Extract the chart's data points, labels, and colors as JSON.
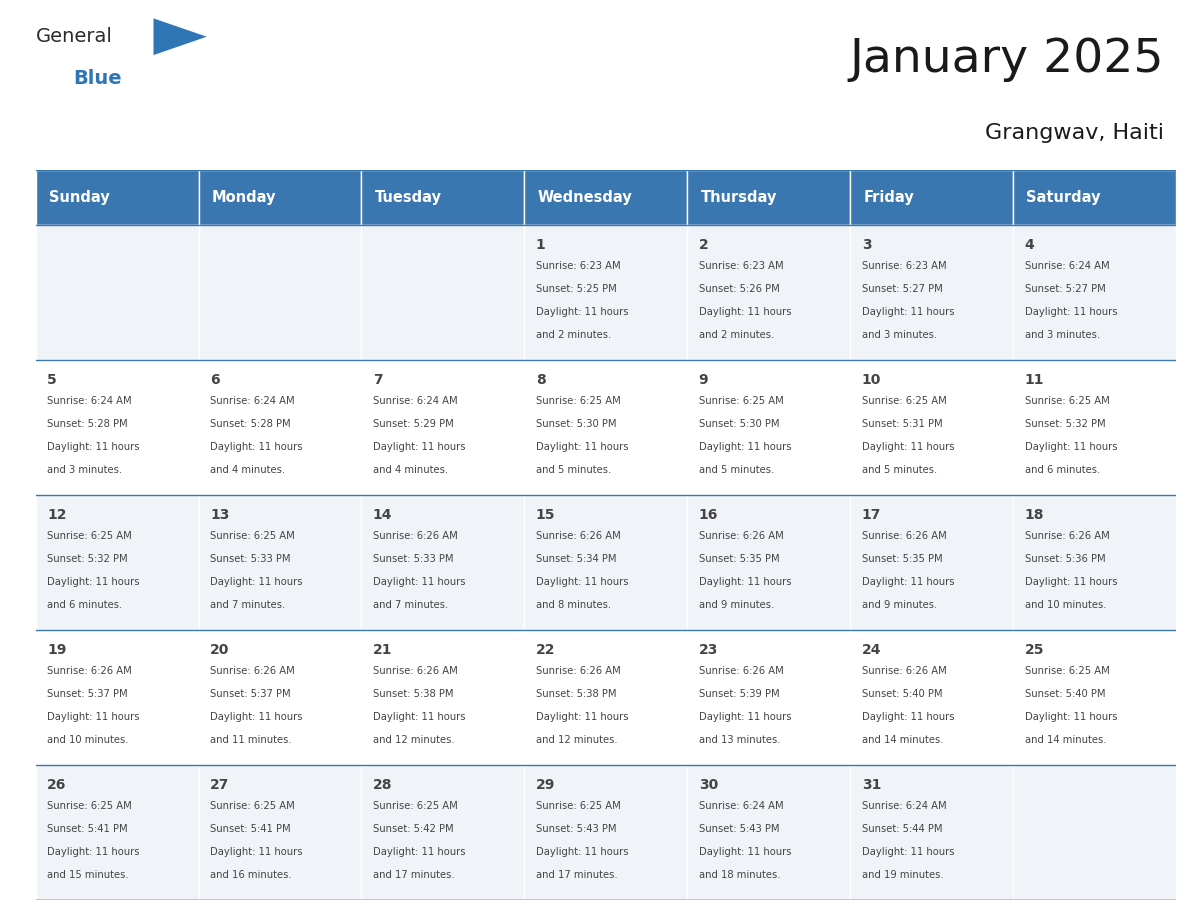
{
  "title": "January 2025",
  "subtitle": "Grangwav, Haiti",
  "days_of_week": [
    "Sunday",
    "Monday",
    "Tuesday",
    "Wednesday",
    "Thursday",
    "Friday",
    "Saturday"
  ],
  "header_bg": "#3a76b0",
  "header_text_color": "#ffffff",
  "cell_bg_light": "#f0f4f8",
  "cell_bg_white": "#ffffff",
  "text_color": "#444444",
  "line_color": "#3a76b0",
  "title_color": "#1a1a1a",
  "general_black": "#2c2c2c",
  "general_blue": "#2e75b6",
  "calendar": [
    [
      null,
      null,
      null,
      {
        "day": 1,
        "sunrise": "6:23 AM",
        "sunset": "5:25 PM",
        "daylight": "11 hours and 2 minutes."
      },
      {
        "day": 2,
        "sunrise": "6:23 AM",
        "sunset": "5:26 PM",
        "daylight": "11 hours and 2 minutes."
      },
      {
        "day": 3,
        "sunrise": "6:23 AM",
        "sunset": "5:27 PM",
        "daylight": "11 hours and 3 minutes."
      },
      {
        "day": 4,
        "sunrise": "6:24 AM",
        "sunset": "5:27 PM",
        "daylight": "11 hours and 3 minutes."
      }
    ],
    [
      {
        "day": 5,
        "sunrise": "6:24 AM",
        "sunset": "5:28 PM",
        "daylight": "11 hours and 3 minutes."
      },
      {
        "day": 6,
        "sunrise": "6:24 AM",
        "sunset": "5:28 PM",
        "daylight": "11 hours and 4 minutes."
      },
      {
        "day": 7,
        "sunrise": "6:24 AM",
        "sunset": "5:29 PM",
        "daylight": "11 hours and 4 minutes."
      },
      {
        "day": 8,
        "sunrise": "6:25 AM",
        "sunset": "5:30 PM",
        "daylight": "11 hours and 5 minutes."
      },
      {
        "day": 9,
        "sunrise": "6:25 AM",
        "sunset": "5:30 PM",
        "daylight": "11 hours and 5 minutes."
      },
      {
        "day": 10,
        "sunrise": "6:25 AM",
        "sunset": "5:31 PM",
        "daylight": "11 hours and 5 minutes."
      },
      {
        "day": 11,
        "sunrise": "6:25 AM",
        "sunset": "5:32 PM",
        "daylight": "11 hours and 6 minutes."
      }
    ],
    [
      {
        "day": 12,
        "sunrise": "6:25 AM",
        "sunset": "5:32 PM",
        "daylight": "11 hours and 6 minutes."
      },
      {
        "day": 13,
        "sunrise": "6:25 AM",
        "sunset": "5:33 PM",
        "daylight": "11 hours and 7 minutes."
      },
      {
        "day": 14,
        "sunrise": "6:26 AM",
        "sunset": "5:33 PM",
        "daylight": "11 hours and 7 minutes."
      },
      {
        "day": 15,
        "sunrise": "6:26 AM",
        "sunset": "5:34 PM",
        "daylight": "11 hours and 8 minutes."
      },
      {
        "day": 16,
        "sunrise": "6:26 AM",
        "sunset": "5:35 PM",
        "daylight": "11 hours and 9 minutes."
      },
      {
        "day": 17,
        "sunrise": "6:26 AM",
        "sunset": "5:35 PM",
        "daylight": "11 hours and 9 minutes."
      },
      {
        "day": 18,
        "sunrise": "6:26 AM",
        "sunset": "5:36 PM",
        "daylight": "11 hours and 10 minutes."
      }
    ],
    [
      {
        "day": 19,
        "sunrise": "6:26 AM",
        "sunset": "5:37 PM",
        "daylight": "11 hours and 10 minutes."
      },
      {
        "day": 20,
        "sunrise": "6:26 AM",
        "sunset": "5:37 PM",
        "daylight": "11 hours and 11 minutes."
      },
      {
        "day": 21,
        "sunrise": "6:26 AM",
        "sunset": "5:38 PM",
        "daylight": "11 hours and 12 minutes."
      },
      {
        "day": 22,
        "sunrise": "6:26 AM",
        "sunset": "5:38 PM",
        "daylight": "11 hours and 12 minutes."
      },
      {
        "day": 23,
        "sunrise": "6:26 AM",
        "sunset": "5:39 PM",
        "daylight": "11 hours and 13 minutes."
      },
      {
        "day": 24,
        "sunrise": "6:26 AM",
        "sunset": "5:40 PM",
        "daylight": "11 hours and 14 minutes."
      },
      {
        "day": 25,
        "sunrise": "6:25 AM",
        "sunset": "5:40 PM",
        "daylight": "11 hours and 14 minutes."
      }
    ],
    [
      {
        "day": 26,
        "sunrise": "6:25 AM",
        "sunset": "5:41 PM",
        "daylight": "11 hours and 15 minutes."
      },
      {
        "day": 27,
        "sunrise": "6:25 AM",
        "sunset": "5:41 PM",
        "daylight": "11 hours and 16 minutes."
      },
      {
        "day": 28,
        "sunrise": "6:25 AM",
        "sunset": "5:42 PM",
        "daylight": "11 hours and 17 minutes."
      },
      {
        "day": 29,
        "sunrise": "6:25 AM",
        "sunset": "5:43 PM",
        "daylight": "11 hours and 17 minutes."
      },
      {
        "day": 30,
        "sunrise": "6:24 AM",
        "sunset": "5:43 PM",
        "daylight": "11 hours and 18 minutes."
      },
      {
        "day": 31,
        "sunrise": "6:24 AM",
        "sunset": "5:44 PM",
        "daylight": "11 hours and 19 minutes."
      },
      null
    ]
  ]
}
